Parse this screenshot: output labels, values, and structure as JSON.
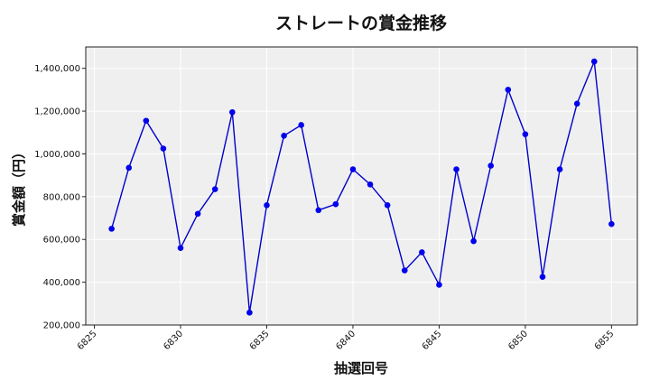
{
  "chart_data": {
    "type": "line",
    "title": "ストレートの賞金推移",
    "xlabel": "抽選回号",
    "ylabel": "賞金額（円）",
    "xlim": [
      6824.5,
      6856.5
    ],
    "ylim": [
      200000,
      1500000
    ],
    "x_ticks": [
      6825,
      6830,
      6835,
      6840,
      6845,
      6850,
      6855
    ],
    "y_ticks": [
      200000,
      400000,
      600000,
      800000,
      1000000,
      1200000,
      1400000
    ],
    "y_tick_labels": [
      "200,000",
      "400,000",
      "600,000",
      "800,000",
      "1,000,000",
      "1,200,000",
      "1,400,000"
    ],
    "grid": true,
    "series": [
      {
        "color": "#0000cc",
        "marker_color": "#0000ee",
        "x": [
          6826,
          6827,
          6828,
          6829,
          6830,
          6831,
          6832,
          6833,
          6834,
          6835,
          6836,
          6837,
          6838,
          6839,
          6840,
          6841,
          6842,
          6843,
          6844,
          6845,
          6846,
          6847,
          6848,
          6849,
          6850,
          6851,
          6852,
          6853,
          6854,
          6855
        ],
        "values": [
          650000,
          935000,
          1155000,
          1025000,
          560000,
          720000,
          835000,
          1195000,
          258000,
          760000,
          1085000,
          1135000,
          737000,
          765000,
          928000,
          857000,
          760000,
          455000,
          540000,
          388000,
          928000,
          592000,
          945000,
          1300000,
          1092000,
          425000,
          928000,
          1235000,
          1432000,
          672000
        ]
      }
    ]
  }
}
